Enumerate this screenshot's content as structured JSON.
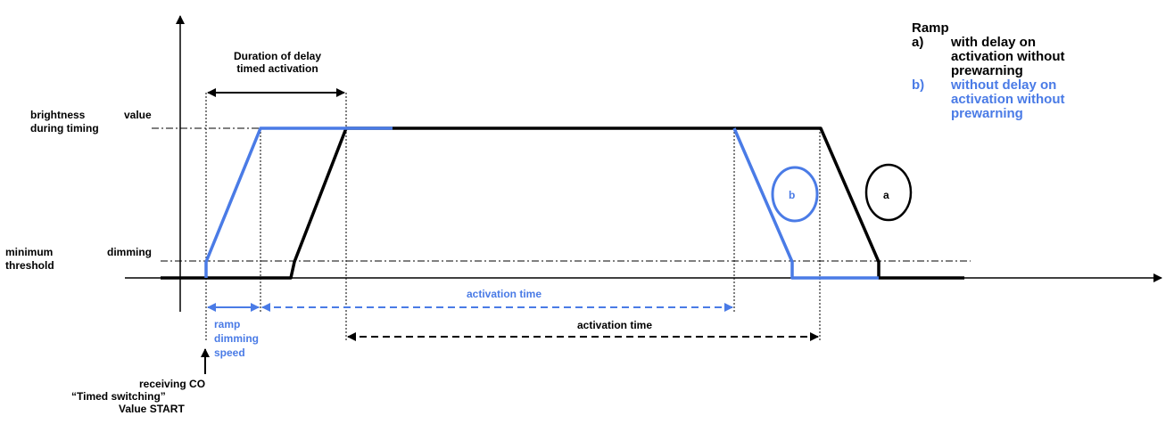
{
  "colors": {
    "black": "#000000",
    "blue": "#4a7be6"
  },
  "labels": {
    "duration_line1": "Duration of delay",
    "duration_line2": "timed activation",
    "brightness_1": "brightness",
    "brightness_2": "value",
    "brightness_3": "during timing",
    "minimum_1": "minimum",
    "minimum_2": "dimming",
    "minimum_3": "threshold",
    "b_circle": "b",
    "a_circle": "a",
    "activation_time_blue": "activation time",
    "activation_time_black": "activation time",
    "ramp_1": "ramp",
    "ramp_2": "dimming",
    "ramp_3": "speed",
    "receiving_1": "receiving CO",
    "receiving_2": "“Timed switching”",
    "receiving_3": "Value START"
  },
  "legend": {
    "title": "Ramp",
    "a_key": "a)",
    "a_line1": "with delay on",
    "a_line2": "activation without",
    "a_line3": "prewarning",
    "b_key": "b)",
    "b_line1": "without delay on",
    "b_line2": "activation without",
    "b_line3": "prewarning"
  }
}
